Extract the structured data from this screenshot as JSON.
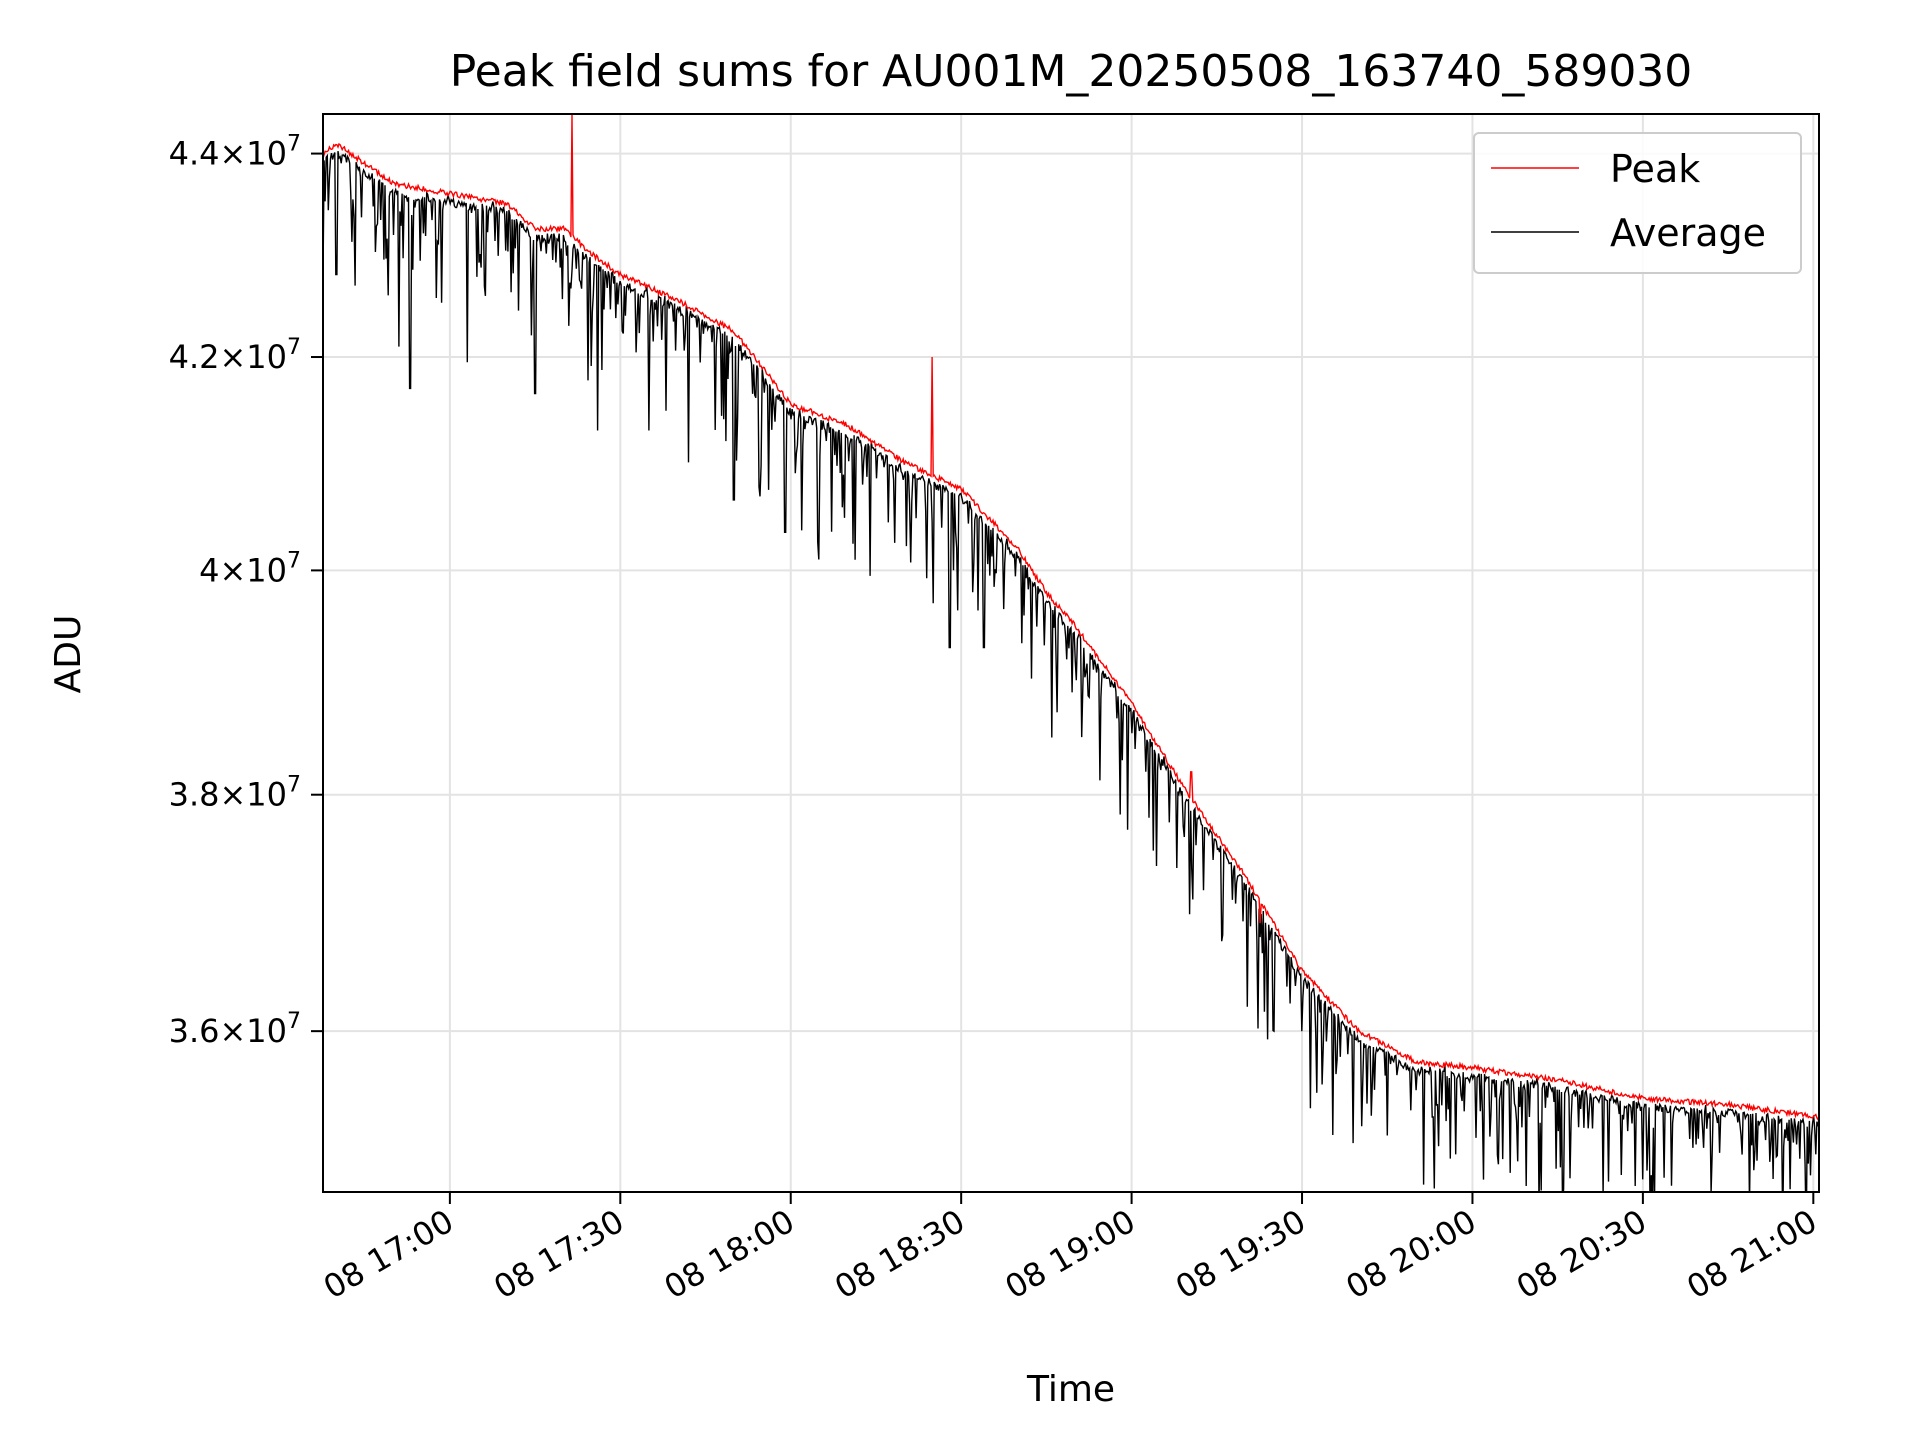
{
  "chart_data": {
    "type": "line",
    "title": "Peak field sums for AU001M_20250508_163740_589030",
    "xlabel": "Time",
    "ylabel": "ADU",
    "y_scale": "log",
    "grid": true,
    "legend_position": "top-right",
    "xlim": [
      "2025-05-08T16:37:40",
      "2025-05-08T21:01:00"
    ],
    "ylim": [
      34700000,
      44400000
    ],
    "x_ticks": [
      {
        "time": "2025-05-08T17:00:00",
        "label": "08 17:00"
      },
      {
        "time": "2025-05-08T17:30:00",
        "label": "08 17:30"
      },
      {
        "time": "2025-05-08T18:00:00",
        "label": "08 18:00"
      },
      {
        "time": "2025-05-08T18:30:00",
        "label": "08 18:30"
      },
      {
        "time": "2025-05-08T19:00:00",
        "label": "08 19:00"
      },
      {
        "time": "2025-05-08T19:30:00",
        "label": "08 19:30"
      },
      {
        "time": "2025-05-08T20:00:00",
        "label": "08 20:00"
      },
      {
        "time": "2025-05-08T20:30:00",
        "label": "08 20:30"
      },
      {
        "time": "2025-05-08T21:00:00",
        "label": "08 21:00"
      }
    ],
    "y_ticks": [
      {
        "value": 36000000,
        "mantissa": "3.6",
        "exponent": "7"
      },
      {
        "value": 38000000,
        "mantissa": "3.8",
        "exponent": "7"
      },
      {
        "value": 40000000,
        "mantissa": "4",
        "exponent": "7"
      },
      {
        "value": 42000000,
        "mantissa": "4.2",
        "exponent": "7"
      },
      {
        "value": 44000000,
        "mantissa": "4.4",
        "exponent": "7"
      }
    ],
    "times_label": "×10",
    "series": [
      {
        "name": "Peak",
        "color": "#ff0000",
        "points": [
          {
            "x": "2025-05-08T16:37:40",
            "y": 44000000
          },
          {
            "x": "2025-05-08T16:40:00",
            "y": 44100000
          },
          {
            "x": "2025-05-08T16:45:00",
            "y": 43900000
          },
          {
            "x": "2025-05-08T16:50:00",
            "y": 43700000
          },
          {
            "x": "2025-05-08T17:00:00",
            "y": 43600000
          },
          {
            "x": "2025-05-08T17:10:00",
            "y": 43500000
          },
          {
            "x": "2025-05-08T17:15:00",
            "y": 43250000
          },
          {
            "x": "2025-05-08T17:20:00",
            "y": 43250000
          },
          {
            "x": "2025-05-08T17:25:00",
            "y": 43000000
          },
          {
            "x": "2025-05-08T17:30:00",
            "y": 42800000
          },
          {
            "x": "2025-05-08T17:40:00",
            "y": 42550000
          },
          {
            "x": "2025-05-08T17:50:00",
            "y": 42250000
          },
          {
            "x": "2025-05-08T18:00:00",
            "y": 41550000
          },
          {
            "x": "2025-05-08T18:10:00",
            "y": 41350000
          },
          {
            "x": "2025-05-08T18:20:00",
            "y": 41000000
          },
          {
            "x": "2025-05-08T18:30:00",
            "y": 40750000
          },
          {
            "x": "2025-05-08T18:40:00",
            "y": 40200000
          },
          {
            "x": "2025-05-08T18:45:00",
            "y": 39800000
          },
          {
            "x": "2025-05-08T18:50:00",
            "y": 39500000
          },
          {
            "x": "2025-05-08T19:00:00",
            "y": 38800000
          },
          {
            "x": "2025-05-08T19:10:00",
            "y": 38000000
          },
          {
            "x": "2025-05-08T19:20:00",
            "y": 37300000
          },
          {
            "x": "2025-05-08T19:30:00",
            "y": 36500000
          },
          {
            "x": "2025-05-08T19:40:00",
            "y": 36000000
          },
          {
            "x": "2025-05-08T19:50:00",
            "y": 35750000
          },
          {
            "x": "2025-05-08T20:00:00",
            "y": 35700000
          },
          {
            "x": "2025-05-08T20:15:00",
            "y": 35600000
          },
          {
            "x": "2025-05-08T20:30:00",
            "y": 35450000
          },
          {
            "x": "2025-05-08T20:45:00",
            "y": 35400000
          },
          {
            "x": "2025-05-08T21:01:00",
            "y": 35300000
          }
        ],
        "spikes": [
          {
            "x": "2025-05-08T17:21:30",
            "y": 44400000
          },
          {
            "x": "2025-05-08T18:24:50",
            "y": 42000000
          },
          {
            "x": "2025-05-08T19:10:30",
            "y": 38200000
          },
          {
            "x": "2025-05-08T19:22:40",
            "y": 36900000
          }
        ]
      },
      {
        "name": "Average",
        "color": "#000000",
        "dip_lows": [
          {
            "x": "2025-05-08T16:40:00",
            "y": 42800000
          },
          {
            "x": "2025-05-08T16:51:00",
            "y": 42100000
          },
          {
            "x": "2025-05-08T16:53:00",
            "y": 41700000
          },
          {
            "x": "2025-05-08T17:03:00",
            "y": 41950000
          },
          {
            "x": "2025-05-08T17:15:00",
            "y": 41650000
          },
          {
            "x": "2025-05-08T17:21:00",
            "y": 42300000
          },
          {
            "x": "2025-05-08T17:26:00",
            "y": 41300000
          },
          {
            "x": "2025-05-08T17:35:00",
            "y": 41300000
          },
          {
            "x": "2025-05-08T17:42:00",
            "y": 41000000
          },
          {
            "x": "2025-05-08T17:50:00",
            "y": 40650000
          },
          {
            "x": "2025-05-08T17:59:00",
            "y": 40350000
          },
          {
            "x": "2025-05-08T18:05:00",
            "y": 40100000
          },
          {
            "x": "2025-05-08T18:14:00",
            "y": 39950000
          },
          {
            "x": "2025-05-08T18:25:00",
            "y": 39700000
          },
          {
            "x": "2025-05-08T18:28:00",
            "y": 39300000
          },
          {
            "x": "2025-05-08T18:34:00",
            "y": 39300000
          },
          {
            "x": "2025-05-08T18:46:00",
            "y": 38500000
          },
          {
            "x": "2025-05-08T19:03:00",
            "y": 37800000
          },
          {
            "x": "2025-05-08T19:16:00",
            "y": 36800000
          },
          {
            "x": "2025-05-08T19:25:00",
            "y": 36000000
          },
          {
            "x": "2025-05-08T19:30:00",
            "y": 36000000
          },
          {
            "x": "2025-05-08T19:53:00",
            "y": 35300000
          },
          {
            "x": "2025-05-08T19:57:00",
            "y": 35000000
          },
          {
            "x": "2025-05-08T20:10:00",
            "y": 35300000
          },
          {
            "x": "2025-05-08T20:30:00",
            "y": 34800000
          },
          {
            "x": "2025-05-08T20:35:00",
            "y": 34750000
          },
          {
            "x": "2025-05-08T20:42:00",
            "y": 34700000
          },
          {
            "x": "2025-05-08T20:55:00",
            "y": 35200000
          }
        ]
      }
    ]
  }
}
